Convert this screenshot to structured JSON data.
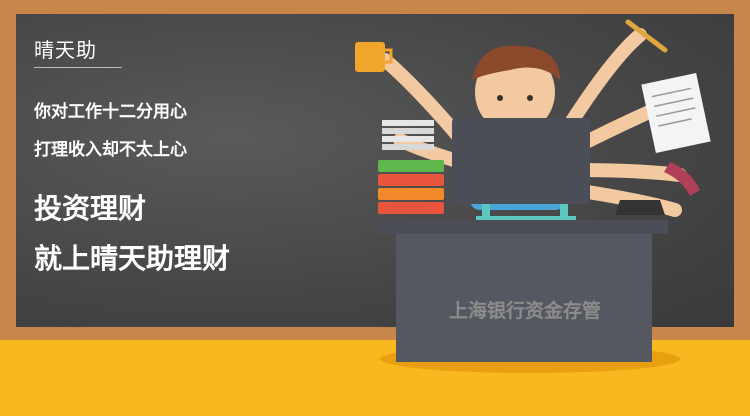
{
  "brand": {
    "name": "晴天助"
  },
  "copy": {
    "line1": "你对工作十二分用心",
    "line2": "打理收入却不太上心",
    "headline1": "投资理财",
    "headline2": "就上晴天助理财"
  },
  "desk": {
    "label": "上海银行资金存管"
  },
  "colors": {
    "board": "#454545",
    "frame": "#c9864a",
    "floor": "#f9b820"
  }
}
